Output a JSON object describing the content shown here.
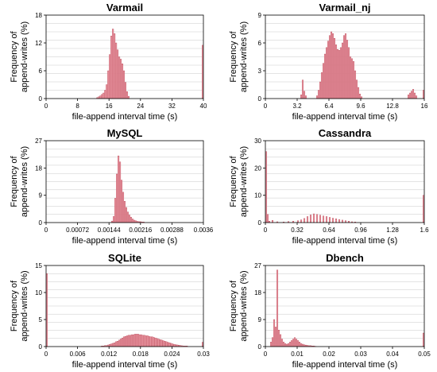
{
  "chart_data": [
    {
      "type": "bar",
      "title": "Varmail",
      "xlabel": "file-append interval time (s)",
      "ylabel_lines": [
        "Frequency of",
        "append-writes (%)"
      ],
      "xlim": [
        0,
        40
      ],
      "ylim": [
        0,
        18
      ],
      "xticks": [
        0,
        8,
        16,
        24,
        32,
        40
      ],
      "xtick_labels": [
        "0",
        "8",
        "16",
        "24",
        "32",
        "40"
      ],
      "yticks": [
        0,
        6,
        12,
        18
      ],
      "bar_width": 0.4,
      "x": [
        13.0,
        13.4,
        13.8,
        14.2,
        14.6,
        15.0,
        15.4,
        15.8,
        16.2,
        16.6,
        17.0,
        17.4,
        17.8,
        18.2,
        18.6,
        19.0,
        19.4,
        19.8,
        20.2,
        20.6,
        21.0,
        39.8
      ],
      "values": [
        0.2,
        0.4,
        0.6,
        0.9,
        1.2,
        1.8,
        3.0,
        6.0,
        9.5,
        13.5,
        15.0,
        14.0,
        12.0,
        10.5,
        9.0,
        8.5,
        7.5,
        6.0,
        3.5,
        1.5,
        0.5,
        11.5
      ]
    },
    {
      "type": "bar",
      "title": "Varmail_nj",
      "xlabel": "file-append interval time (s)",
      "ylabel_lines": [
        "Frequency of",
        "append-writes (%)"
      ],
      "xlim": [
        0,
        16
      ],
      "ylim": [
        0,
        9
      ],
      "xticks": [
        0,
        3.2,
        6.4,
        9.6,
        12.8,
        16
      ],
      "xtick_labels": [
        "0",
        "3.2",
        "6.4",
        "9.6",
        "12.8",
        "16"
      ],
      "yticks": [
        0,
        3,
        6,
        9
      ],
      "bar_width": 0.16,
      "x": [
        3.6,
        3.76,
        3.92,
        4.08,
        5.2,
        5.36,
        5.52,
        5.68,
        5.84,
        6.0,
        6.16,
        6.32,
        6.48,
        6.64,
        6.8,
        6.96,
        7.12,
        7.28,
        7.44,
        7.6,
        7.76,
        7.92,
        8.08,
        8.24,
        8.4,
        8.56,
        8.72,
        8.88,
        9.04,
        9.2,
        9.36,
        9.52,
        9.68,
        14.4,
        14.56,
        14.72,
        14.88,
        15.04,
        15.2,
        15.92
      ],
      "values": [
        0.4,
        2.0,
        0.8,
        0.3,
        0.3,
        0.9,
        1.8,
        2.8,
        3.8,
        4.8,
        5.5,
        6.2,
        6.8,
        7.2,
        7.0,
        6.5,
        5.8,
        5.3,
        5.2,
        5.5,
        6.0,
        6.8,
        7.0,
        6.3,
        5.5,
        4.5,
        4.3,
        4.0,
        3.0,
        2.0,
        1.2,
        0.5,
        0.2,
        0.4,
        0.6,
        0.8,
        1.0,
        0.6,
        0.3,
        0.9
      ]
    },
    {
      "type": "bar",
      "title": "MySQL",
      "xlabel": "file-append interval time (s)",
      "ylabel_lines": [
        "Frequency of",
        "append-writes (%)"
      ],
      "xlim": [
        0,
        0.0036
      ],
      "ylim": [
        0,
        27
      ],
      "xticks": [
        0,
        0.00072,
        0.00144,
        0.00216,
        0.00288,
        0.0036
      ],
      "xtick_labels": [
        "0",
        "0.00072",
        "0.00144",
        "0.00216",
        "0.00288",
        "0.0036"
      ],
      "yticks": [
        0,
        9,
        18,
        27
      ],
      "bar_width": 3.6e-05,
      "x": [
        0.001512,
        0.001548,
        0.001584,
        0.00162,
        0.001656,
        0.001692,
        0.001728,
        0.001764,
        0.0018,
        0.001836,
        0.001872,
        0.001908,
        0.001944,
        0.00198,
        0.002016,
        0.002052,
        0.002088,
        0.002124,
        0.00216,
        0.002196,
        0.002232
      ],
      "values": [
        0.5,
        2.0,
        8.0,
        16.0,
        22.0,
        20.0,
        14.0,
        10.0,
        7.0,
        5.0,
        3.5,
        2.5,
        1.8,
        1.2,
        0.8,
        0.6,
        0.4,
        0.3,
        0.3,
        0.2,
        0.2
      ]
    },
    {
      "type": "bar",
      "title": "Cassandra",
      "xlabel": "file-append interval time (s)",
      "ylabel_lines": [
        "Frequency of",
        "append-writes (%)"
      ],
      "xlim": [
        0,
        1.6
      ],
      "ylim": [
        0,
        30
      ],
      "xticks": [
        0,
        0.32,
        0.64,
        0.96,
        1.28,
        1.6
      ],
      "xtick_labels": [
        "0",
        "0.32",
        "0.64",
        "0.96",
        "1.28",
        "1.6"
      ],
      "yticks": [
        0,
        10,
        20,
        30
      ],
      "bar_width": 0.016,
      "x": [
        0.008,
        0.024,
        0.04,
        0.072,
        0.12,
        0.184,
        0.232,
        0.28,
        0.328,
        0.36,
        0.392,
        0.424,
        0.456,
        0.488,
        0.52,
        0.552,
        0.584,
        0.616,
        0.648,
        0.68,
        0.712,
        0.744,
        0.776,
        0.808,
        0.84,
        0.872,
        0.904,
        1.592
      ],
      "values": [
        26.0,
        3.0,
        0.5,
        0.8,
        0.3,
        0.2,
        0.4,
        0.5,
        0.7,
        1.0,
        1.5,
        2.2,
        2.8,
        3.2,
        3.0,
        2.7,
        2.4,
        2.2,
        1.9,
        1.6,
        1.4,
        1.1,
        0.9,
        0.7,
        0.5,
        0.3,
        0.2,
        10.0
      ]
    },
    {
      "type": "bar",
      "title": "SQLite",
      "xlabel": "file-append interval time (s)",
      "ylabel_lines": [
        "Frequency of",
        "append-writes (%)"
      ],
      "xlim": [
        0,
        0.03
      ],
      "ylim": [
        0,
        15
      ],
      "xticks": [
        0,
        0.006,
        0.012,
        0.018,
        0.024,
        0.03
      ],
      "xtick_labels": [
        "0",
        "0.006",
        "0.012",
        "0.018",
        "0.024",
        "0.03"
      ],
      "yticks": [
        0,
        5,
        10,
        15
      ],
      "bar_width": 0.0003,
      "x": [
        0.00015,
        0.01065,
        0.01095,
        0.01125,
        0.01155,
        0.01185,
        0.01215,
        0.01245,
        0.01275,
        0.01305,
        0.01335,
        0.01365,
        0.01395,
        0.01425,
        0.01455,
        0.01485,
        0.01515,
        0.01545,
        0.01575,
        0.01605,
        0.01635,
        0.01665,
        0.01695,
        0.01725,
        0.01755,
        0.01785,
        0.01815,
        0.01845,
        0.01875,
        0.01905,
        0.01935,
        0.01965,
        0.01995,
        0.02025,
        0.02055,
        0.02085,
        0.02115,
        0.02145,
        0.02175,
        0.02205,
        0.02235,
        0.02265,
        0.02295,
        0.02325,
        0.02355,
        0.02385,
        0.02415,
        0.02445,
        0.02475,
        0.02505,
        0.02535,
        0.02565,
        0.02595,
        0.02625,
        0.02655,
        0.02685,
        0.02985
      ],
      "values": [
        13.5,
        0.1,
        0.1,
        0.2,
        0.2,
        0.3,
        0.4,
        0.5,
        0.6,
        0.7,
        0.9,
        1.0,
        1.2,
        1.4,
        1.6,
        1.8,
        1.9,
        2.0,
        2.1,
        2.1,
        2.2,
        2.2,
        2.3,
        2.3,
        2.3,
        2.2,
        2.2,
        2.1,
        2.1,
        2.0,
        2.0,
        1.9,
        1.8,
        1.8,
        1.7,
        1.6,
        1.5,
        1.4,
        1.3,
        1.2,
        1.1,
        1.0,
        0.9,
        0.8,
        0.7,
        0.6,
        0.5,
        0.4,
        0.35,
        0.3,
        0.25,
        0.2,
        0.15,
        0.1,
        0.1,
        0.1,
        0.8
      ]
    },
    {
      "type": "bar",
      "title": "Dbench",
      "xlabel": "file-append interval time (s)",
      "ylabel_lines": [
        "Frequency of",
        "append-writes (%)"
      ],
      "xlim": [
        0,
        0.05
      ],
      "ylim": [
        0,
        27
      ],
      "xticks": [
        0,
        0.01,
        0.02,
        0.03,
        0.04,
        0.05
      ],
      "xtick_labels": [
        "0",
        "0.01",
        "0.02",
        "0.03",
        "0.04",
        "0.05"
      ],
      "yticks": [
        0,
        9,
        18,
        27
      ],
      "bar_width": 0.0005,
      "x": [
        0.00175,
        0.00225,
        0.00275,
        0.00325,
        0.00375,
        0.00425,
        0.00475,
        0.00525,
        0.00575,
        0.00625,
        0.00675,
        0.00725,
        0.00775,
        0.00825,
        0.00875,
        0.00925,
        0.00975,
        0.01025,
        0.01075,
        0.01125,
        0.01175,
        0.01225,
        0.01275,
        0.01325,
        0.01375,
        0.01425,
        0.01475,
        0.01525,
        0.01575,
        0.04975
      ],
      "values": [
        1.5,
        3.0,
        9.0,
        6.5,
        25.5,
        5.5,
        4.0,
        2.5,
        1.5,
        1.0,
        0.8,
        1.0,
        1.5,
        2.0,
        2.5,
        3.0,
        2.5,
        2.0,
        1.5,
        1.0,
        0.8,
        0.6,
        0.5,
        0.4,
        0.3,
        0.3,
        0.2,
        0.2,
        0.1,
        4.5
      ]
    }
  ]
}
